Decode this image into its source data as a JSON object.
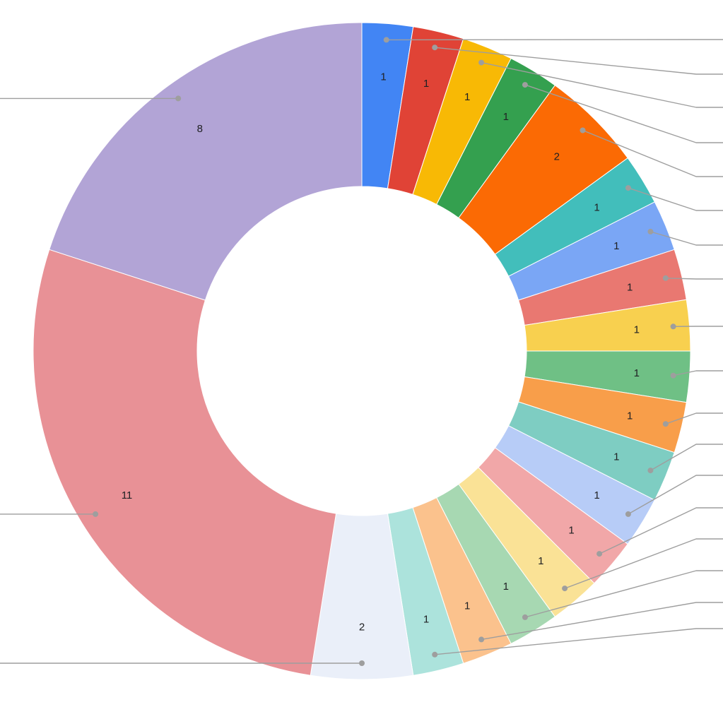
{
  "page": {
    "background_color": "#ffffff"
  },
  "chart_data": {
    "type": "pie",
    "subtype": "donut",
    "title": "",
    "total": 40,
    "start_angle_deg": 0,
    "direction": "clockwise",
    "donut_hole_ratio": 0.5,
    "data_labels_shown": true,
    "data_label_color": "#202124",
    "leader_line_color": "#9e9e9e",
    "slice_border_color": "#ffffff",
    "legend_position": "labeled-leader-lines-cropped-off-canvas",
    "slices": [
      {
        "value": 1,
        "label": "1",
        "color": "#4285F4",
        "leader": "right"
      },
      {
        "value": 1,
        "label": "1",
        "color": "#E04336",
        "leader": "right"
      },
      {
        "value": 1,
        "label": "1",
        "color": "#F8B905",
        "leader": "right"
      },
      {
        "value": 1,
        "label": "1",
        "color": "#34A04F",
        "leader": "right"
      },
      {
        "value": 2,
        "label": "2",
        "color": "#FB6A04",
        "leader": "right"
      },
      {
        "value": 1,
        "label": "1",
        "color": "#42BEBB",
        "leader": "right"
      },
      {
        "value": 1,
        "label": "1",
        "color": "#7AA6F5",
        "leader": "right"
      },
      {
        "value": 1,
        "label": "1",
        "color": "#E97871",
        "leader": "right"
      },
      {
        "value": 1,
        "label": "1",
        "color": "#F8D04F",
        "leader": "right"
      },
      {
        "value": 1,
        "label": "1",
        "color": "#6FC085",
        "leader": "right"
      },
      {
        "value": 1,
        "label": "1",
        "color": "#F89E4A",
        "leader": "right"
      },
      {
        "value": 1,
        "label": "1",
        "color": "#7ECDC2",
        "leader": "right"
      },
      {
        "value": 1,
        "label": "1",
        "color": "#B7CCF7",
        "leader": "right"
      },
      {
        "value": 1,
        "label": "1",
        "color": "#F1A7A8",
        "leader": "right"
      },
      {
        "value": 1,
        "label": "1",
        "color": "#FAE296",
        "leader": "right"
      },
      {
        "value": 1,
        "label": "1",
        "color": "#A7D8B2",
        "leader": "right"
      },
      {
        "value": 1,
        "label": "1",
        "color": "#FBC28D",
        "leader": "right"
      },
      {
        "value": 1,
        "label": "1",
        "color": "#ACE3DC",
        "leader": "right"
      },
      {
        "value": 2,
        "label": "2",
        "color": "#EAEFF9",
        "leader": "left"
      },
      {
        "value": 11,
        "label": "11",
        "color": "#E89196",
        "leader": "left"
      },
      {
        "value": 8,
        "label": "8",
        "color": "#B2A4D6",
        "leader": "left"
      }
    ]
  }
}
